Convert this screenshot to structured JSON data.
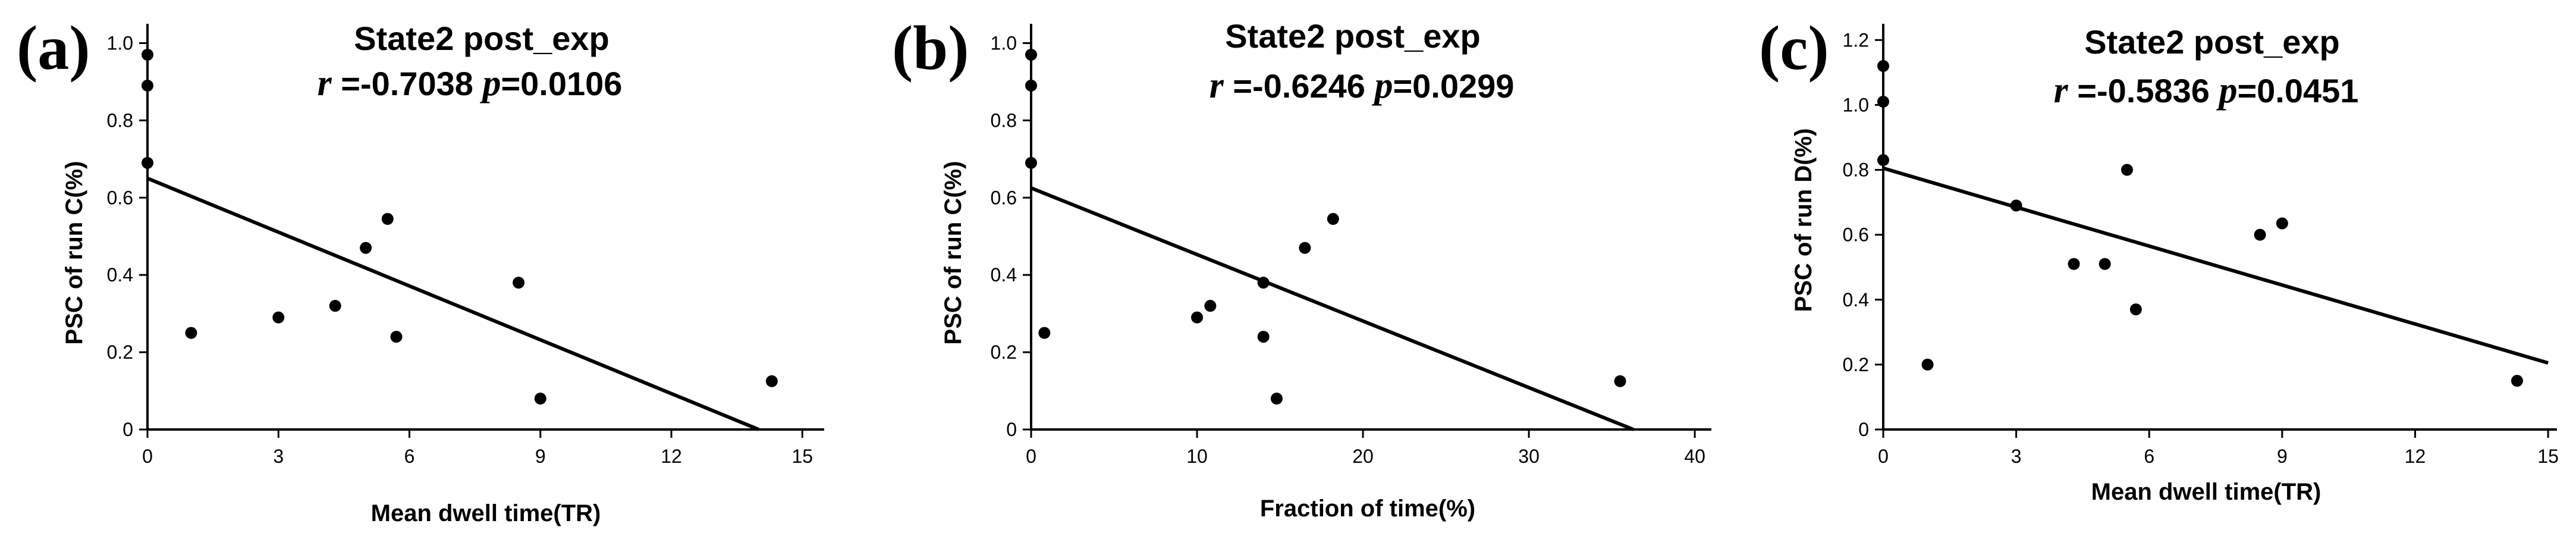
{
  "chart_data": [
    {
      "type": "scatter",
      "panel_label": "(a)",
      "title": "State2 post_exp",
      "stats": {
        "r_symbol": "r",
        "r_text": " =-0.7038 ",
        "p_symbol": "p",
        "p_text": "=0.0106"
      },
      "xlabel": "Mean dwell time(TR)",
      "ylabel": "PSC of run C(%)",
      "xlim": [
        0,
        15.5
      ],
      "ylim": [
        0,
        1.05
      ],
      "xticks": [
        0,
        3,
        6,
        9,
        12,
        15
      ],
      "yticks": [
        0,
        0.2,
        0.4,
        0.6,
        0.8,
        1.0
      ],
      "yticklabels": [
        "0",
        "0.2",
        "0.4",
        "0.6",
        "0.8",
        "1.0"
      ],
      "points": [
        {
          "x": 0,
          "y": 0.97
        },
        {
          "x": 0,
          "y": 0.89
        },
        {
          "x": 0,
          "y": 0.69
        },
        {
          "x": 1.0,
          "y": 0.25
        },
        {
          "x": 3.0,
          "y": 0.29
        },
        {
          "x": 4.3,
          "y": 0.32
        },
        {
          "x": 5.0,
          "y": 0.47
        },
        {
          "x": 5.5,
          "y": 0.545
        },
        {
          "x": 5.7,
          "y": 0.24
        },
        {
          "x": 8.5,
          "y": 0.38
        },
        {
          "x": 9.0,
          "y": 0.08
        },
        {
          "x": 14.3,
          "y": 0.125
        }
      ],
      "fit_line": {
        "x": [
          0,
          14.0
        ],
        "y": [
          0.65,
          0.0
        ]
      },
      "grid": false
    },
    {
      "type": "scatter",
      "panel_label": "(b)",
      "title": "State2 post_exp",
      "stats": {
        "r_symbol": "r",
        "r_text": " =-0.6246 ",
        "p_symbol": "p",
        "p_text": "=0.0299"
      },
      "xlabel": "Fraction of time(%)",
      "ylabel": "PSC of run C(%)",
      "xlim": [
        0,
        41
      ],
      "ylim": [
        0,
        1.05
      ],
      "xticks": [
        0,
        10,
        20,
        30,
        40
      ],
      "yticks": [
        0,
        0.2,
        0.4,
        0.6,
        0.8,
        1.0
      ],
      "yticklabels": [
        "0",
        "0.2",
        "0.4",
        "0.6",
        "0.8",
        "1.0"
      ],
      "points": [
        {
          "x": 0,
          "y": 0.97
        },
        {
          "x": 0,
          "y": 0.89
        },
        {
          "x": 0,
          "y": 0.69
        },
        {
          "x": 0.8,
          "y": 0.25
        },
        {
          "x": 10.0,
          "y": 0.29
        },
        {
          "x": 10.8,
          "y": 0.32
        },
        {
          "x": 14.0,
          "y": 0.38
        },
        {
          "x": 14.0,
          "y": 0.24
        },
        {
          "x": 14.8,
          "y": 0.08
        },
        {
          "x": 16.5,
          "y": 0.47
        },
        {
          "x": 18.2,
          "y": 0.545
        },
        {
          "x": 35.5,
          "y": 0.125
        }
      ],
      "fit_line": {
        "x": [
          0,
          36.3
        ],
        "y": [
          0.625,
          0.0
        ]
      },
      "grid": false
    },
    {
      "type": "scatter",
      "panel_label": "(c)",
      "title": "State2 post_exp",
      "stats": {
        "r_symbol": "r",
        "r_text": " =-0.5836 ",
        "p_symbol": "p",
        "p_text": "=0.0451"
      },
      "xlabel": "Mean dwell time(TR)",
      "ylabel": "PSC of run D(%)",
      "xlim": [
        0,
        15.2
      ],
      "ylim": [
        0,
        1.25
      ],
      "xticks": [
        0,
        3,
        6,
        9,
        12,
        15
      ],
      "yticks": [
        0,
        0.2,
        0.4,
        0.6,
        0.8,
        1.0,
        1.2
      ],
      "yticklabels": [
        "0",
        "0.2",
        "0.4",
        "0.6",
        "0.8",
        "1.0",
        "1.2"
      ],
      "points": [
        {
          "x": 0,
          "y": 1.12
        },
        {
          "x": 0,
          "y": 1.01
        },
        {
          "x": 0,
          "y": 0.83
        },
        {
          "x": 1.0,
          "y": 0.2
        },
        {
          "x": 3.0,
          "y": 0.69
        },
        {
          "x": 4.3,
          "y": 0.51
        },
        {
          "x": 5.0,
          "y": 0.51
        },
        {
          "x": 5.5,
          "y": 0.8
        },
        {
          "x": 5.7,
          "y": 0.37
        },
        {
          "x": 8.5,
          "y": 0.6
        },
        {
          "x": 9.0,
          "y": 0.635
        },
        {
          "x": 14.3,
          "y": 0.15
        }
      ],
      "fit_line": {
        "x": [
          0,
          15.0
        ],
        "y": [
          0.805,
          0.205
        ]
      },
      "grid": false
    }
  ]
}
